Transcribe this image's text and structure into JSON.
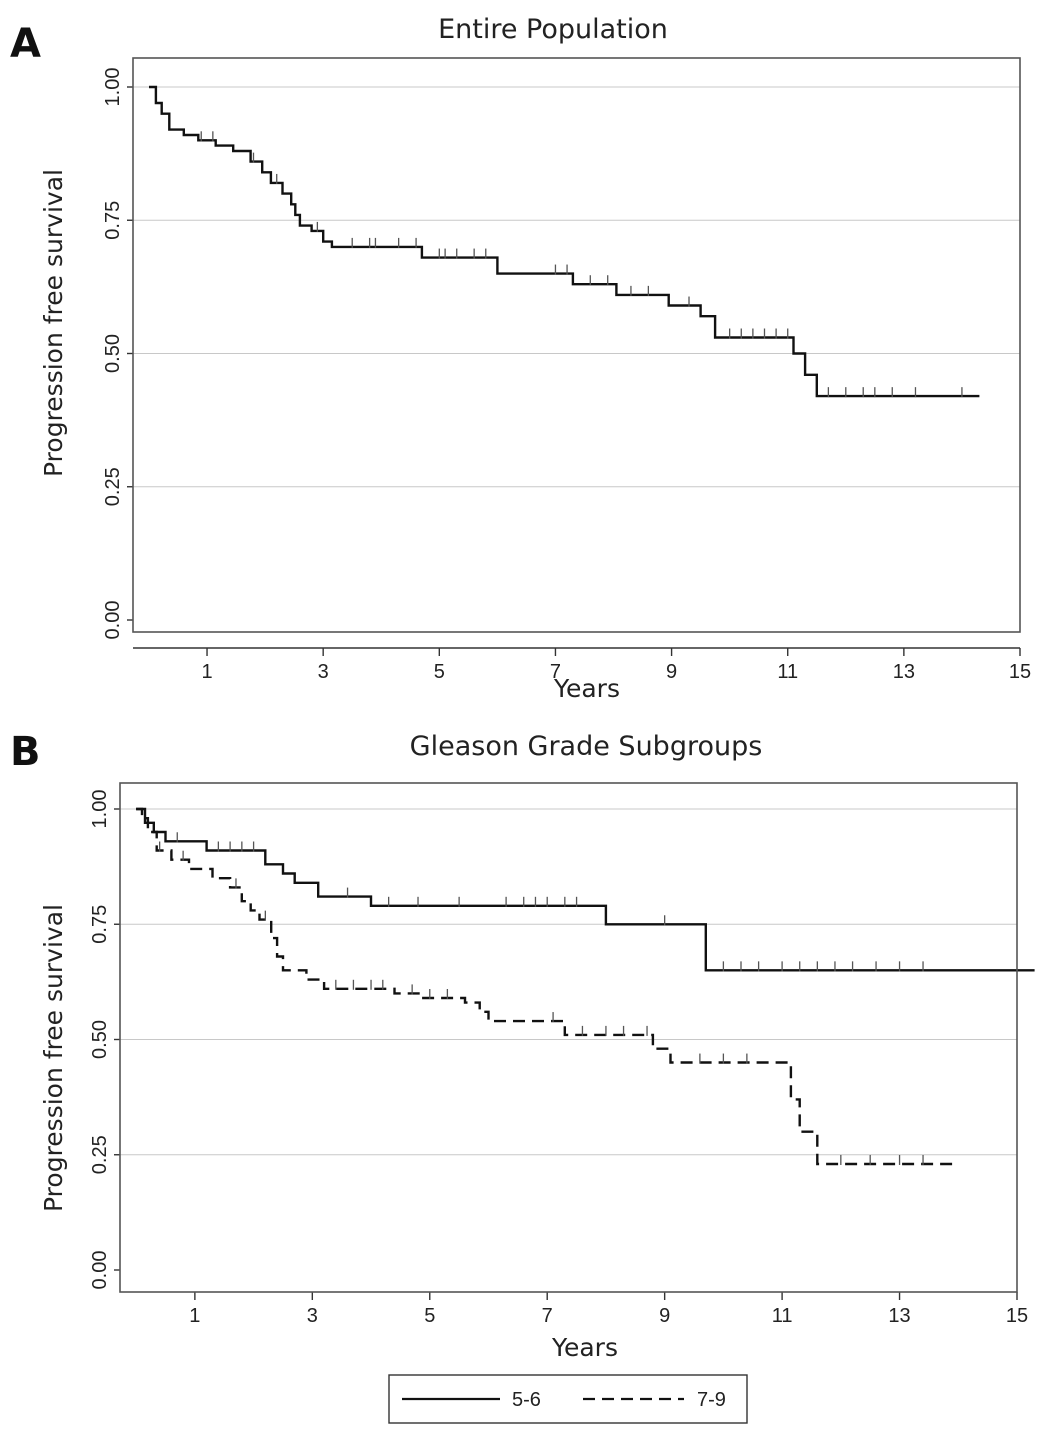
{
  "figure": {
    "panels": [
      {
        "letter": "A",
        "title": "Entire Population",
        "xlabel": "Years",
        "ylabel": "Progression free survival"
      },
      {
        "letter": "B",
        "title": "Gleason Grade Subgroups",
        "xlabel": "Years",
        "ylabel": "Progression free survival"
      }
    ],
    "legend": [
      {
        "label": "5-6",
        "dash": "solid"
      },
      {
        "label": "7-9",
        "dash": "dashed"
      }
    ]
  },
  "chart_data": [
    {
      "type": "line",
      "title": "Entire Population",
      "xlabel": "Years",
      "ylabel": "Progression free survival",
      "xlim": [
        0,
        15
      ],
      "ylim": [
        0,
        1
      ],
      "xticks": [
        "1",
        "3",
        "5",
        "7",
        "9",
        "11",
        "13",
        "15"
      ],
      "yticks": [
        "0.00",
        "0.25",
        "0.50",
        "0.75",
        "1.00"
      ],
      "grid": "horizontal",
      "series": [
        {
          "step": true,
          "dash": "solid",
          "points": [
            [
              0,
              1.0
            ],
            [
              0.12,
              0.97
            ],
            [
              0.22,
              0.95
            ],
            [
              0.35,
              0.92
            ],
            [
              0.6,
              0.91
            ],
            [
              0.85,
              0.9
            ],
            [
              1.15,
              0.89
            ],
            [
              1.45,
              0.88
            ],
            [
              1.75,
              0.86
            ],
            [
              1.95,
              0.84
            ],
            [
              2.1,
              0.82
            ],
            [
              2.3,
              0.8
            ],
            [
              2.45,
              0.78
            ],
            [
              2.52,
              0.76
            ],
            [
              2.6,
              0.74
            ],
            [
              2.8,
              0.73
            ],
            [
              3.0,
              0.71
            ],
            [
              3.15,
              0.7
            ],
            [
              4.7,
              0.68
            ],
            [
              6.0,
              0.65
            ],
            [
              7.3,
              0.63
            ],
            [
              8.05,
              0.61
            ],
            [
              8.95,
              0.59
            ],
            [
              9.5,
              0.57
            ],
            [
              9.75,
              0.53
            ],
            [
              11.1,
              0.5
            ],
            [
              11.3,
              0.46
            ],
            [
              11.5,
              0.42
            ],
            [
              14.3,
              0.42
            ]
          ],
          "censor_x": [
            0.9,
            1.1,
            1.8,
            2.2,
            2.9,
            3.5,
            3.8,
            3.9,
            4.3,
            4.6,
            5.0,
            5.1,
            5.3,
            5.6,
            5.8,
            7.0,
            7.2,
            7.6,
            7.9,
            8.3,
            8.6,
            9.3,
            10.0,
            10.2,
            10.4,
            10.6,
            10.8,
            11.0,
            11.7,
            12.0,
            12.3,
            12.5,
            12.8,
            13.2,
            14.0
          ]
        }
      ]
    },
    {
      "type": "line",
      "title": "Gleason Grade Subgroups",
      "xlabel": "Years",
      "ylabel": "Progression free survival",
      "xlim": [
        0,
        15
      ],
      "ylim": [
        0,
        1
      ],
      "xticks": [
        "1",
        "3",
        "5",
        "7",
        "9",
        "11",
        "13",
        "15"
      ],
      "yticks": [
        "0.00",
        "0.25",
        "0.50",
        "0.75",
        "1.00"
      ],
      "grid": "horizontal",
      "legend": "bottom",
      "series": [
        {
          "name": "5-6",
          "step": true,
          "dash": "solid",
          "points": [
            [
              0,
              1.0
            ],
            [
              0.15,
              0.97
            ],
            [
              0.3,
              0.95
            ],
            [
              0.5,
              0.93
            ],
            [
              1.2,
              0.91
            ],
            [
              2.2,
              0.88
            ],
            [
              2.5,
              0.86
            ],
            [
              2.7,
              0.84
            ],
            [
              3.1,
              0.81
            ],
            [
              4.0,
              0.79
            ],
            [
              8.0,
              0.75
            ],
            [
              9.7,
              0.65
            ],
            [
              15.3,
              0.65
            ]
          ],
          "censor_x": [
            0.7,
            1.4,
            1.6,
            1.8,
            2.0,
            3.6,
            4.3,
            4.8,
            5.5,
            6.3,
            6.6,
            6.8,
            7.0,
            7.3,
            7.5,
            9.0,
            10.0,
            10.3,
            10.6,
            11.0,
            11.3,
            11.6,
            11.9,
            12.2,
            12.6,
            13.0,
            13.4
          ]
        },
        {
          "name": "7-9",
          "step": true,
          "dash": "dashed",
          "points": [
            [
              0,
              1.0
            ],
            [
              0.1,
              0.98
            ],
            [
              0.2,
              0.95
            ],
            [
              0.35,
              0.91
            ],
            [
              0.6,
              0.89
            ],
            [
              0.9,
              0.87
            ],
            [
              1.3,
              0.85
            ],
            [
              1.6,
              0.83
            ],
            [
              1.8,
              0.8
            ],
            [
              1.95,
              0.78
            ],
            [
              2.1,
              0.76
            ],
            [
              2.3,
              0.72
            ],
            [
              2.4,
              0.68
            ],
            [
              2.5,
              0.65
            ],
            [
              2.9,
              0.63
            ],
            [
              3.2,
              0.61
            ],
            [
              4.4,
              0.6
            ],
            [
              4.85,
              0.59
            ],
            [
              5.6,
              0.58
            ],
            [
              5.85,
              0.56
            ],
            [
              6.0,
              0.54
            ],
            [
              7.3,
              0.51
            ],
            [
              8.8,
              0.48
            ],
            [
              9.1,
              0.45
            ],
            [
              11.15,
              0.37
            ],
            [
              11.3,
              0.3
            ],
            [
              11.6,
              0.23
            ],
            [
              13.9,
              0.23
            ]
          ],
          "censor_x": [
            0.4,
            0.8,
            1.7,
            2.2,
            3.4,
            3.7,
            4.0,
            4.2,
            4.7,
            5.0,
            5.3,
            7.1,
            7.6,
            8.0,
            8.3,
            8.7,
            9.6,
            10.0,
            10.4,
            12.0,
            12.5,
            13.0,
            13.4
          ]
        }
      ]
    }
  ]
}
